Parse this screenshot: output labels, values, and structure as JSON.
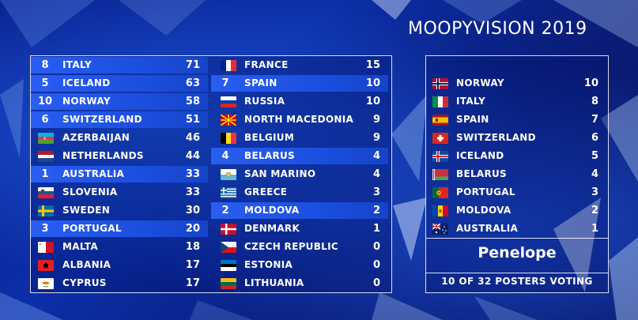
{
  "title": "MOOPYVISION 2019",
  "scoreboard": {
    "left": [
      {
        "pts": "8",
        "name": "ITALY",
        "score": "71",
        "flag": "italy-flag-icon",
        "hl": true
      },
      {
        "pts": "5",
        "name": "ICELAND",
        "score": "63",
        "flag": "iceland-flag-icon",
        "hl": true
      },
      {
        "pts": "10",
        "name": "NORWAY",
        "score": "58",
        "flag": "norway-flag-icon",
        "hl": true
      },
      {
        "pts": "6",
        "name": "SWITZERLAND",
        "score": "51",
        "flag": "switzerland-flag-icon",
        "hl": true
      },
      {
        "pts": "",
        "name": "AZERBAIJAN",
        "score": "46",
        "flag": "azerbaijan-flag-icon",
        "hl": false
      },
      {
        "pts": "",
        "name": "NETHERLANDS",
        "score": "44",
        "flag": "netherlands-flag-icon",
        "hl": false
      },
      {
        "pts": "1",
        "name": "AUSTRALIA",
        "score": "33",
        "flag": "australia-flag-icon",
        "hl": true
      },
      {
        "pts": "",
        "name": "SLOVENIA",
        "score": "33",
        "flag": "slovenia-flag-icon",
        "hl": false
      },
      {
        "pts": "",
        "name": "SWEDEN",
        "score": "30",
        "flag": "sweden-flag-icon",
        "hl": false
      },
      {
        "pts": "3",
        "name": "PORTUGAL",
        "score": "20",
        "flag": "portugal-flag-icon",
        "hl": true
      },
      {
        "pts": "",
        "name": "MALTA",
        "score": "18",
        "flag": "malta-flag-icon",
        "hl": false
      },
      {
        "pts": "",
        "name": "ALBANIA",
        "score": "17",
        "flag": "albania-flag-icon",
        "hl": false
      },
      {
        "pts": "",
        "name": "CYPRUS",
        "score": "17",
        "flag": "cyprus-flag-icon",
        "hl": false
      }
    ],
    "right": [
      {
        "pts": "",
        "name": "FRANCE",
        "score": "15",
        "flag": "france-flag-icon",
        "hl": false
      },
      {
        "pts": "7",
        "name": "SPAIN",
        "score": "10",
        "flag": "spain-flag-icon",
        "hl": true
      },
      {
        "pts": "",
        "name": "RUSSIA",
        "score": "10",
        "flag": "russia-flag-icon",
        "hl": false
      },
      {
        "pts": "",
        "name": "NORTH MACEDONIA",
        "score": "9",
        "flag": "north-macedonia-flag-icon",
        "hl": false
      },
      {
        "pts": "",
        "name": "BELGIUM",
        "score": "9",
        "flag": "belgium-flag-icon",
        "hl": false
      },
      {
        "pts": "4",
        "name": "BELARUS",
        "score": "4",
        "flag": "belarus-flag-icon",
        "hl": true
      },
      {
        "pts": "",
        "name": "SAN MARINO",
        "score": "4",
        "flag": "san-marino-flag-icon",
        "hl": false
      },
      {
        "pts": "",
        "name": "GREECE",
        "score": "3",
        "flag": "greece-flag-icon",
        "hl": false
      },
      {
        "pts": "2",
        "name": "MOLDOVA",
        "score": "2",
        "flag": "moldova-flag-icon",
        "hl": true
      },
      {
        "pts": "",
        "name": "DENMARK",
        "score": "1",
        "flag": "denmark-flag-icon",
        "hl": false
      },
      {
        "pts": "",
        "name": "CZECH REPUBLIC",
        "score": "0",
        "flag": "czech-republic-flag-icon",
        "hl": false
      },
      {
        "pts": "",
        "name": "ESTONIA",
        "score": "0",
        "flag": "estonia-flag-icon",
        "hl": false
      },
      {
        "pts": "",
        "name": "LITHUANIA",
        "score": "0",
        "flag": "lithuania-flag-icon",
        "hl": false
      }
    ]
  },
  "voting_panel": {
    "points": [
      {
        "name": "NORWAY",
        "score": "10",
        "flag": "norway-flag-icon"
      },
      {
        "name": "ITALY",
        "score": "8",
        "flag": "italy-flag-icon"
      },
      {
        "name": "SPAIN",
        "score": "7",
        "flag": "spain-flag-icon"
      },
      {
        "name": "SWITZERLAND",
        "score": "6",
        "flag": "switzerland-flag-icon"
      },
      {
        "name": "ICELAND",
        "score": "5",
        "flag": "iceland-flag-icon"
      },
      {
        "name": "BELARUS",
        "score": "4",
        "flag": "belarus-flag-icon"
      },
      {
        "name": "PORTUGAL",
        "score": "3",
        "flag": "portugal-flag-icon"
      },
      {
        "name": "MOLDOVA",
        "score": "2",
        "flag": "moldova-flag-icon"
      },
      {
        "name": "AUSTRALIA",
        "score": "1",
        "flag": "australia-flag-icon"
      }
    ],
    "voter": "Penelope",
    "status": "10 OF 32 POSTERS VOTING"
  },
  "colors": {
    "highlight": "#1c4fe0",
    "background": "#0b2fa8",
    "border": "#ffffff"
  }
}
